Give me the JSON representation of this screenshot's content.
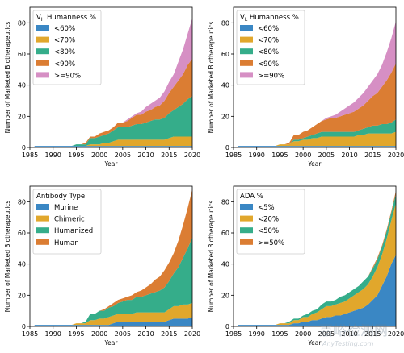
{
  "chart_data": [
    {
      "type": "area",
      "stacked": true,
      "legend_title": "V_H Humanness %",
      "legend_title_parts": [
        {
          "text": "V",
          "sub": false
        },
        {
          "text": "H",
          "sub": true
        },
        {
          "text": " Humanness %",
          "sub": false
        }
      ],
      "xlabel": "Year",
      "ylabel": "Number of Marketed Biotherapeutics",
      "xlim": [
        1985,
        2020
      ],
      "ylim": [
        0,
        90
      ],
      "xticks": [
        "1985",
        "1990",
        "1995",
        "2000",
        "2005",
        "2010",
        "2015",
        "2020"
      ],
      "yticks": [
        "0",
        "20",
        "40",
        "60",
        "80"
      ],
      "legend_position": "top-left",
      "x": [
        1986,
        1987,
        1988,
        1989,
        1990,
        1991,
        1992,
        1993,
        1994,
        1995,
        1996,
        1997,
        1998,
        1999,
        2000,
        2001,
        2002,
        2003,
        2004,
        2005,
        2006,
        2007,
        2008,
        2009,
        2010,
        2011,
        2012,
        2013,
        2014,
        2015,
        2016,
        2017,
        2018,
        2019,
        2020
      ],
      "series": [
        {
          "name": "<60%",
          "color": "#3a87c4",
          "values": [
            1,
            1,
            1,
            1,
            1,
            1,
            1,
            1,
            1,
            1,
            1,
            1,
            1,
            1,
            1,
            1,
            1,
            1,
            1,
            1,
            1,
            1,
            1,
            1,
            1,
            1,
            1,
            1,
            1,
            1,
            1,
            1,
            1,
            1,
            1
          ]
        },
        {
          "name": "<70%",
          "color": "#e1a72c",
          "values": [
            0,
            0,
            0,
            0,
            0,
            0,
            0,
            0,
            0,
            0,
            0,
            0,
            1,
            1,
            1,
            2,
            2,
            3,
            4,
            4,
            4,
            4,
            4,
            4,
            4,
            4,
            4,
            4,
            4,
            5,
            6,
            6,
            6,
            6,
            6
          ]
        },
        {
          "name": "<80%",
          "color": "#35ad8a",
          "values": [
            0,
            0,
            0,
            0,
            0,
            0,
            0,
            0,
            0,
            1,
            1,
            1,
            4,
            4,
            5,
            5,
            6,
            7,
            8,
            8,
            8,
            9,
            10,
            10,
            11,
            12,
            13,
            13,
            14,
            16,
            17,
            19,
            21,
            24,
            26
          ]
        },
        {
          "name": "<90%",
          "color": "#db7d33",
          "values": [
            0,
            0,
            0,
            0,
            0,
            0,
            0,
            0,
            0,
            0,
            0,
            1,
            1,
            1,
            2,
            2,
            2,
            2,
            3,
            3,
            4,
            5,
            6,
            6,
            7,
            7,
            8,
            9,
            11,
            13,
            15,
            17,
            19,
            22,
            24
          ]
        },
        {
          "name": ">=90%",
          "color": "#d68fc4",
          "values": [
            0,
            0,
            0,
            0,
            0,
            0,
            0,
            0,
            0,
            0,
            0,
            0,
            0,
            0,
            0,
            0,
            0,
            0,
            0,
            0,
            1,
            1,
            1,
            2,
            3,
            4,
            4,
            5,
            6,
            7,
            8,
            12,
            16,
            20,
            26
          ]
        }
      ]
    },
    {
      "type": "area",
      "stacked": true,
      "legend_title": "V_L Humanness %",
      "legend_title_parts": [
        {
          "text": "V",
          "sub": false
        },
        {
          "text": "L",
          "sub": true
        },
        {
          "text": " Humanness %",
          "sub": false
        }
      ],
      "xlabel": "Year",
      "ylabel": "Number of Marketed Biotherapeutics",
      "xlim": [
        1985,
        2020
      ],
      "ylim": [
        0,
        90
      ],
      "xticks": [
        "1985",
        "1990",
        "1995",
        "2000",
        "2005",
        "2010",
        "2015",
        "2020"
      ],
      "yticks": [
        "0",
        "20",
        "40",
        "60",
        "80"
      ],
      "legend_position": "top-left",
      "x": [
        1986,
        1987,
        1988,
        1989,
        1990,
        1991,
        1992,
        1993,
        1994,
        1995,
        1996,
        1997,
        1998,
        1999,
        2000,
        2001,
        2002,
        2003,
        2004,
        2005,
        2006,
        2007,
        2008,
        2009,
        2010,
        2011,
        2012,
        2013,
        2014,
        2015,
        2016,
        2017,
        2018,
        2019,
        2020
      ],
      "series": [
        {
          "name": "<60%",
          "color": "#3a87c4",
          "values": [
            1,
            1,
            1,
            1,
            1,
            1,
            1,
            1,
            1,
            1,
            1,
            1,
            1,
            1,
            1,
            1,
            1,
            1,
            1,
            1,
            1,
            1,
            1,
            1,
            1,
            1,
            1,
            1,
            1,
            1,
            1,
            1,
            1,
            1,
            1
          ]
        },
        {
          "name": "<70%",
          "color": "#e1a72c",
          "values": [
            0,
            0,
            0,
            0,
            0,
            0,
            0,
            0,
            0,
            1,
            1,
            1,
            3,
            3,
            4,
            4,
            5,
            5,
            6,
            6,
            6,
            6,
            6,
            6,
            6,
            6,
            7,
            7,
            8,
            8,
            8,
            8,
            8,
            8,
            9
          ]
        },
        {
          "name": "<80%",
          "color": "#35ad8a",
          "values": [
            0,
            0,
            0,
            0,
            0,
            0,
            0,
            0,
            0,
            0,
            0,
            0,
            1,
            1,
            1,
            2,
            2,
            3,
            3,
            3,
            3,
            3,
            3,
            3,
            3,
            3,
            3,
            4,
            4,
            5,
            5,
            6,
            6,
            7,
            8
          ]
        },
        {
          "name": "<90%",
          "color": "#db7d33",
          "values": [
            0,
            0,
            0,
            0,
            0,
            0,
            0,
            0,
            0,
            0,
            0,
            1,
            3,
            3,
            4,
            4,
            5,
            6,
            7,
            8,
            9,
            9,
            10,
            11,
            12,
            13,
            14,
            15,
            17,
            19,
            21,
            24,
            28,
            32,
            36
          ]
        },
        {
          "name": ">=90%",
          "color": "#d68fc4",
          "values": [
            0,
            0,
            0,
            0,
            0,
            0,
            0,
            0,
            0,
            0,
            0,
            0,
            0,
            0,
            0,
            0,
            0,
            0,
            0,
            1,
            1,
            2,
            3,
            4,
            5,
            6,
            7,
            8,
            9,
            10,
            12,
            14,
            18,
            22,
            27
          ]
        }
      ]
    },
    {
      "type": "area",
      "stacked": true,
      "legend_title": "Antibody Type",
      "xlabel": "Year",
      "ylabel": "Number of Marketed Biotherapeutics",
      "xlim": [
        1985,
        2020
      ],
      "ylim": [
        0,
        90
      ],
      "xticks": [
        "1985",
        "1990",
        "1995",
        "2000",
        "2005",
        "2010",
        "2015",
        "2020"
      ],
      "yticks": [
        "0",
        "20",
        "40",
        "60",
        "80"
      ],
      "legend_position": "top-left",
      "x": [
        1986,
        1987,
        1988,
        1989,
        1990,
        1991,
        1992,
        1993,
        1994,
        1995,
        1996,
        1997,
        1998,
        1999,
        2000,
        2001,
        2002,
        2003,
        2004,
        2005,
        2006,
        2007,
        2008,
        2009,
        2010,
        2011,
        2012,
        2013,
        2014,
        2015,
        2016,
        2017,
        2018,
        2019,
        2020
      ],
      "series": [
        {
          "name": "Murine",
          "color": "#3a87c4",
          "values": [
            1,
            1,
            1,
            1,
            1,
            1,
            1,
            1,
            1,
            1,
            1,
            1,
            1,
            1,
            1,
            1,
            1,
            2,
            3,
            3,
            3,
            3,
            3,
            3,
            3,
            3,
            3,
            3,
            3,
            4,
            5,
            5,
            5,
            5,
            6
          ]
        },
        {
          "name": "Chimeric",
          "color": "#e1a72c",
          "values": [
            0,
            0,
            0,
            0,
            0,
            0,
            0,
            0,
            0,
            1,
            1,
            1,
            3,
            3,
            4,
            4,
            5,
            5,
            5,
            5,
            5,
            5,
            6,
            6,
            6,
            6,
            6,
            6,
            6,
            7,
            8,
            8,
            9,
            9,
            9
          ]
        },
        {
          "name": "Humanized",
          "color": "#35ad8a",
          "values": [
            0,
            0,
            0,
            0,
            0,
            0,
            0,
            0,
            0,
            0,
            0,
            1,
            4,
            4,
            5,
            5,
            6,
            6,
            7,
            8,
            9,
            9,
            10,
            10,
            11,
            12,
            13,
            14,
            16,
            18,
            21,
            25,
            30,
            36,
            42
          ]
        },
        {
          "name": "Human",
          "color": "#db7d33",
          "values": [
            0,
            0,
            0,
            0,
            0,
            0,
            0,
            0,
            0,
            0,
            0,
            0,
            0,
            0,
            0,
            1,
            1,
            2,
            2,
            2,
            2,
            3,
            3,
            4,
            5,
            6,
            8,
            9,
            11,
            12,
            13,
            17,
            21,
            26,
            31
          ]
        }
      ]
    },
    {
      "type": "area",
      "stacked": true,
      "legend_title": "ADA %",
      "xlabel": "Year",
      "ylabel": "Number of Marketed Biotherapeutics",
      "xlim": [
        1985,
        2020
      ],
      "ylim": [
        0,
        90
      ],
      "xticks": [
        "1985",
        "1990",
        "1995",
        "2000",
        "2005",
        "2010",
        "2015",
        "2020"
      ],
      "yticks": [
        "0",
        "20",
        "40",
        "60",
        "80"
      ],
      "legend_position": "top-left",
      "x": [
        1986,
        1987,
        1988,
        1989,
        1990,
        1991,
        1992,
        1993,
        1994,
        1995,
        1996,
        1997,
        1998,
        1999,
        2000,
        2001,
        2002,
        2003,
        2004,
        2005,
        2006,
        2007,
        2008,
        2009,
        2010,
        2011,
        2012,
        2013,
        2014,
        2015,
        2016,
        2017,
        2018,
        2019,
        2020
      ],
      "series": [
        {
          "name": "<5%",
          "color": "#3a87c4",
          "values": [
            1,
            1,
            1,
            1,
            1,
            1,
            1,
            1,
            1,
            1,
            1,
            1,
            2,
            2,
            3,
            3,
            4,
            4,
            5,
            6,
            6,
            7,
            7,
            8,
            9,
            10,
            11,
            12,
            14,
            17,
            20,
            26,
            32,
            40,
            46
          ]
        },
        {
          "name": "<20%",
          "color": "#e1a72c",
          "values": [
            0,
            0,
            0,
            0,
            0,
            0,
            0,
            0,
            0,
            1,
            1,
            1,
            2,
            2,
            3,
            3,
            4,
            5,
            6,
            7,
            7,
            7,
            8,
            8,
            9,
            10,
            11,
            12,
            13,
            15,
            18,
            20,
            24,
            28,
            33
          ]
        },
        {
          "name": "<50%",
          "color": "#35ad8a",
          "values": [
            0,
            0,
            0,
            0,
            0,
            0,
            0,
            0,
            0,
            0,
            0,
            1,
            1,
            1,
            1,
            2,
            2,
            2,
            3,
            3,
            3,
            3,
            4,
            4,
            4,
            4,
            4,
            5,
            5,
            5,
            5,
            5,
            5,
            5,
            6
          ]
        },
        {
          "name": ">=50%",
          "color": "#db7d33",
          "values": [
            0,
            0,
            0,
            0,
            0,
            0,
            0,
            0,
            0,
            0,
            0,
            0,
            0,
            0,
            0,
            0,
            0,
            0,
            0,
            0,
            0,
            0,
            0,
            0,
            0,
            0,
            0,
            0,
            0,
            1,
            1,
            1,
            1,
            1,
            2
          ]
        }
      ]
    }
  ],
  "watermark": {
    "line1": "嘉峪检测网",
    "line2": "AnyTesting.com"
  }
}
